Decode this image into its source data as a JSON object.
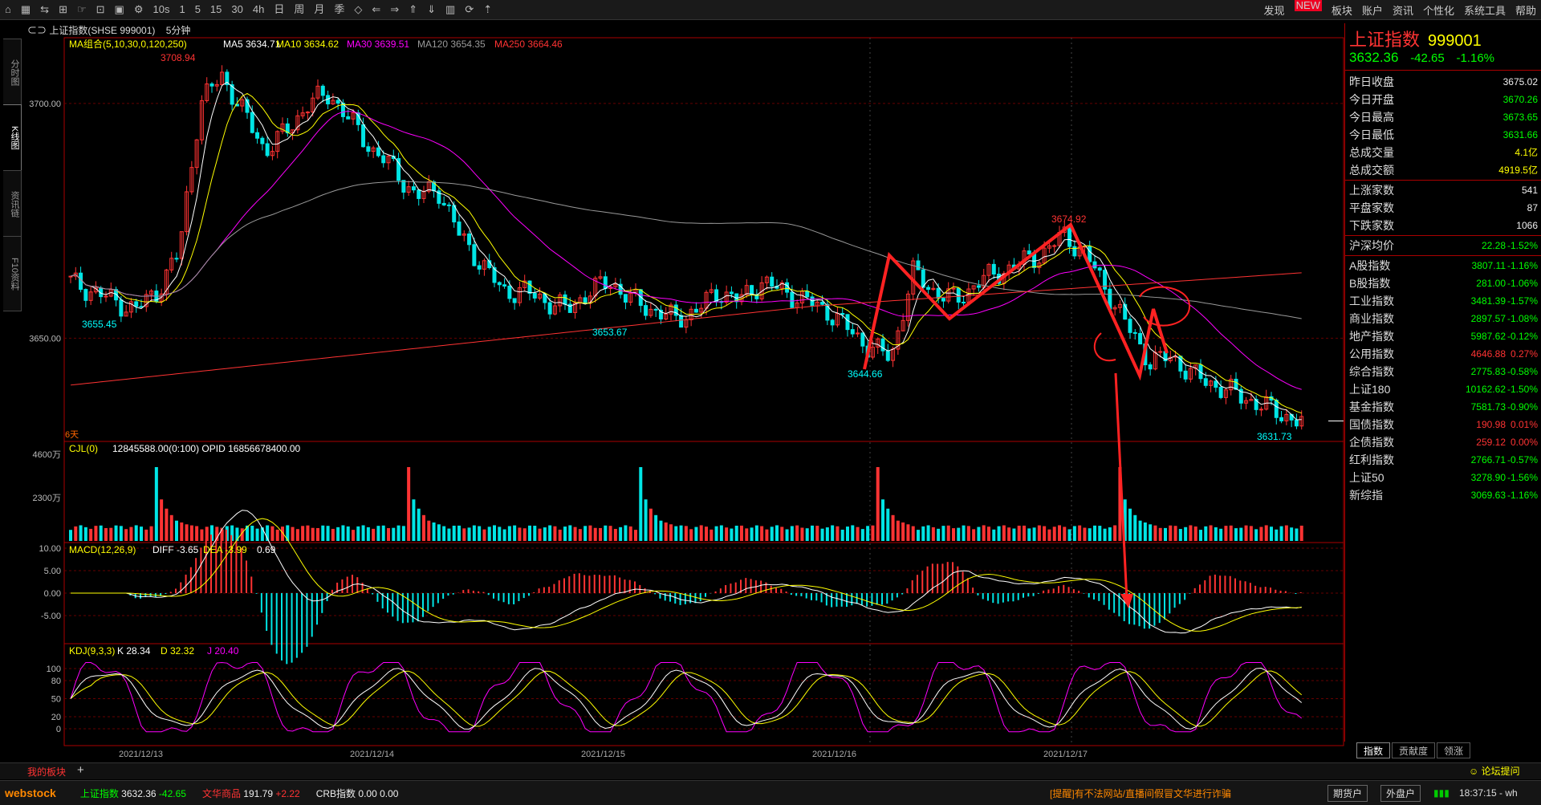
{
  "toolbar": {
    "icons": [
      "home-icon",
      "grid-icon",
      "arrows-icon",
      "chart-icon",
      "cursor-icon",
      "chart-type-icon",
      "save-icon",
      "settings-icon"
    ],
    "periods": [
      "10s",
      "1",
      "5",
      "15",
      "30",
      "4h",
      "日",
      "周",
      "月",
      "季"
    ],
    "right_menu": [
      "发现",
      "板块",
      "账户",
      "资讯",
      "个性化",
      "系统工具",
      "帮助"
    ],
    "new_badge": "NEW"
  },
  "left_tabs": [
    "分时图",
    "K线图",
    "资讯链",
    "F10资料"
  ],
  "header": {
    "title": "上证指数(SHSE 999001)",
    "period": "5分钟"
  },
  "legend": {
    "ma_label": "MA组合(5,10,30,0,120,250)",
    "ma5": "MA5 3634.71",
    "ma10": "MA10 3634.62",
    "ma30": "MA30 3639.51",
    "ma120": "MA120 3654.35",
    "ma250": "MA250 3664.46",
    "cjl": "CJL(0)",
    "cjl_vals": "12845588.00(0:100)  OPID 16856678400.00",
    "macd": "MACD(12,26,9)",
    "diff": "DIFF -3.65",
    "dea": "DEA -3.99",
    "macd_v": "0.69",
    "kdj": "KDJ(9,3,3)",
    "k": "K 28.34",
    "d": "D 32.32",
    "j": "J 20.40",
    "days": "6天"
  },
  "annotations": {
    "high": "3708.94",
    "low1": "3655.45",
    "low2": "3653.67",
    "low3": "3644.66",
    "high2": "3674.92",
    "low4": "3631.73"
  },
  "axes": {
    "price_ticks": [
      "3700.00",
      "3650.00"
    ],
    "vol_ticks": [
      "4600万",
      "2300万"
    ],
    "macd_ticks": [
      "10.00",
      "5.00",
      "0.00",
      "-5.00"
    ],
    "kdj_ticks": [
      "100",
      "80",
      "50",
      "20",
      "0"
    ],
    "dates": [
      "2021/12/13",
      "2021/12/14",
      "2021/12/15",
      "2021/12/16",
      "2021/12/17"
    ]
  },
  "chart_data": {
    "type": "candlestick",
    "title": "上证指数(SHSE 999001) 5分钟",
    "price_range": [
      3628,
      3714
    ],
    "key_points": [
      {
        "label": "3708.94",
        "value": 3708.94
      },
      {
        "label": "3655.45",
        "value": 3655.45
      },
      {
        "label": "3653.67",
        "value": 3653.67
      },
      {
        "label": "3644.66",
        "value": 3644.66
      },
      {
        "label": "3674.92",
        "value": 3674.92
      },
      {
        "label": "3631.73",
        "value": 3631.73
      }
    ],
    "close_path": [
      3662,
      3660,
      3658,
      3656,
      3660,
      3668,
      3700,
      3706,
      3698,
      3690,
      3694,
      3700,
      3702,
      3696,
      3690,
      3686,
      3680,
      3682,
      3672,
      3666,
      3660,
      3660,
      3658,
      3656,
      3660,
      3662,
      3658,
      3656,
      3654,
      3656,
      3660,
      3658,
      3662,
      3660,
      3658,
      3656,
      3652,
      3648,
      3646,
      3664,
      3660,
      3658,
      3662,
      3664,
      3666,
      3668,
      3672,
      3668,
      3660,
      3652,
      3645,
      3646,
      3642,
      3640,
      3638,
      3636,
      3634,
      3632
    ]
  },
  "right_panel": {
    "name": "上证指数",
    "code": "999001",
    "price": "3632.36",
    "change": "-42.65",
    "pct": "-1.16%",
    "stats": [
      {
        "label": "昨日收盘",
        "value": "3675.02",
        "cls": "w"
      },
      {
        "label": "今日开盘",
        "value": "3670.26",
        "cls": "dn"
      },
      {
        "label": "今日最高",
        "value": "3673.65",
        "cls": "dn"
      },
      {
        "label": "今日最低",
        "value": "3631.66",
        "cls": "dn"
      },
      {
        "label": "总成交量",
        "value": "4.1亿",
        "cls": "y"
      },
      {
        "label": "总成交额",
        "value": "4919.5亿",
        "cls": "y"
      }
    ],
    "counts": [
      {
        "label": "上涨家数",
        "value": "541"
      },
      {
        "label": "平盘家数",
        "value": "87"
      },
      {
        "label": "下跌家数",
        "value": "1066"
      }
    ],
    "indices": [
      {
        "label": "沪深均价",
        "v": "22.28",
        "p": "-1.52%",
        "cls": "dn"
      },
      {
        "label": "A股指数",
        "v": "3807.11",
        "p": "-1.16%",
        "cls": "dn"
      },
      {
        "label": "B股指数",
        "v": "281.00",
        "p": "-1.06%",
        "cls": "dn"
      },
      {
        "label": "工业指数",
        "v": "3481.39",
        "p": "-1.57%",
        "cls": "dn"
      },
      {
        "label": "商业指数",
        "v": "2897.57",
        "p": "-1.08%",
        "cls": "dn"
      },
      {
        "label": "地产指数",
        "v": "5987.62",
        "p": "-0.12%",
        "cls": "dn"
      },
      {
        "label": "公用指数",
        "v": "4646.88",
        "p": "0.27%",
        "cls": "up"
      },
      {
        "label": "综合指数",
        "v": "2775.83",
        "p": "-0.58%",
        "cls": "dn"
      },
      {
        "label": "上证180",
        "v": "10162.62",
        "p": "-1.50%",
        "cls": "dn"
      },
      {
        "label": "基金指数",
        "v": "7581.73",
        "p": "-0.90%",
        "cls": "dn"
      },
      {
        "label": "国债指数",
        "v": "190.98",
        "p": "0.01%",
        "cls": "up"
      },
      {
        "label": "企债指数",
        "v": "259.12",
        "p": "0.00%",
        "cls": "up"
      },
      {
        "label": "红利指数",
        "v": "2766.71",
        "p": "-0.57%",
        "cls": "dn"
      },
      {
        "label": "上证50",
        "v": "3278.90",
        "p": "-1.56%",
        "cls": "dn"
      },
      {
        "label": "新综指",
        "v": "3069.63",
        "p": "-1.16%",
        "cls": "dn"
      }
    ],
    "tabs": [
      "指数",
      "贡献度",
      "领涨"
    ]
  },
  "bottom": {
    "tab": "我的板块",
    "add": "+"
  },
  "status": {
    "logo": "webstock",
    "items": [
      {
        "name": "上证指数",
        "v": "3632.36",
        "c": "-42.65"
      },
      {
        "name": "文华商品",
        "v": "191.79",
        "c": "+2.22"
      },
      {
        "name": "CRB指数",
        "v": "0.00",
        "c": "0.00"
      }
    ],
    "notice": "[提醒]有不法网站/直播间假冒文华进行诈骗",
    "btn_futures": "期货户",
    "btn_outer": "外盘户",
    "time": "18:37:15 - wh",
    "forum": "论坛提问"
  },
  "colors": {
    "up": "#ff3333",
    "down": "#00e5e5",
    "ma5": "#ffffff",
    "ma10": "#ffff00",
    "ma30": "#ff00ff",
    "ma120": "#999999",
    "ma250": "#ff3333",
    "border": "#aa0000"
  }
}
